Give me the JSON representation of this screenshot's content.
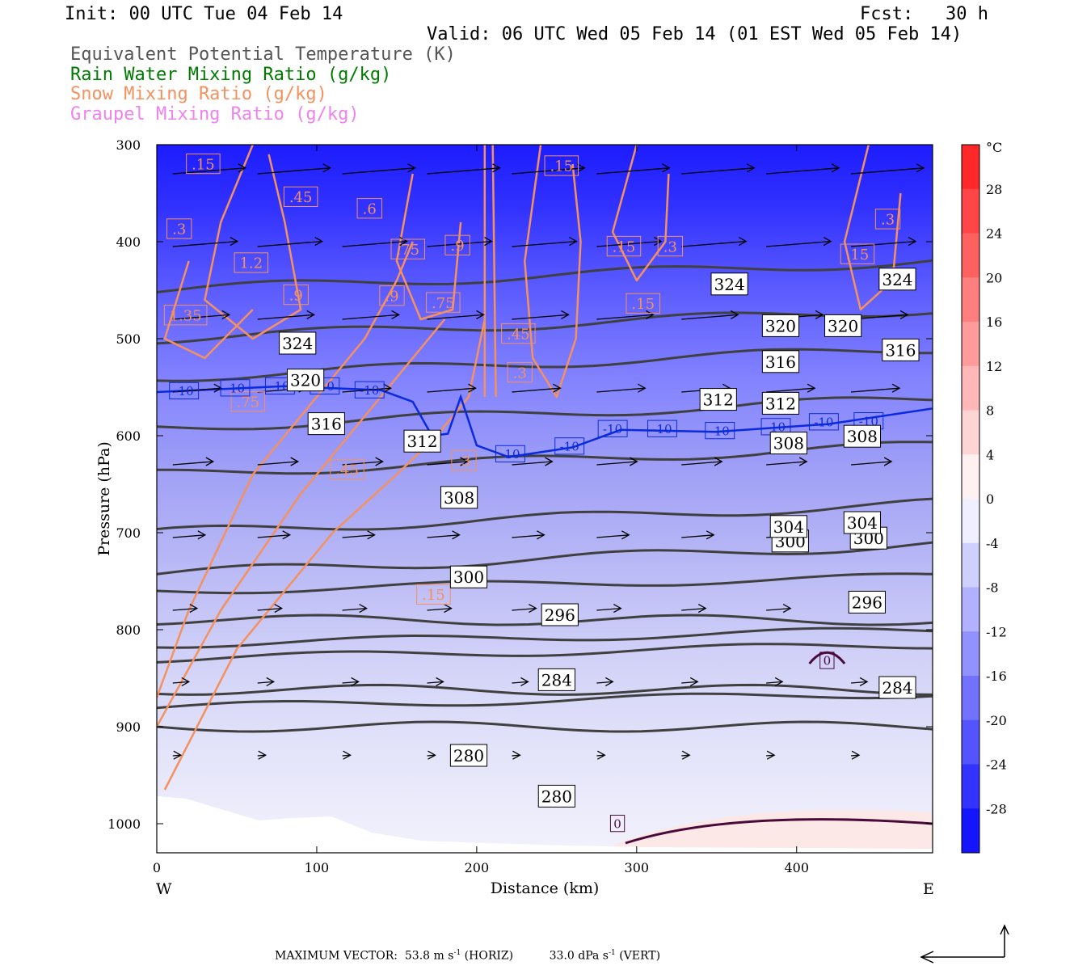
{
  "header": {
    "init": "Init: 00 UTC Tue 04 Feb 14",
    "fcst": "Fcst:   30 h",
    "valid": "Valid: 06 UTC Wed 05 Feb 14 (01 EST Wed 05 Feb 14)"
  },
  "legend": [
    {
      "label": "Equivalent Potential Temperature (K)",
      "color": "#555555"
    },
    {
      "label": "Rain Water Mixing Ratio (g/kg)",
      "color": "#007a00"
    },
    {
      "label": "Snow Mixing Ratio (g/kg)",
      "color": "#f4915e"
    },
    {
      "label": "Graupel Mixing Ratio (g/kg)",
      "color": "#ee82ee"
    }
  ],
  "chart_data": {
    "type": "heatmap",
    "xlabel": "Distance (km)",
    "ylabel": "Pressure (hPa)",
    "xlim": [
      0,
      485
    ],
    "ylim": [
      1030,
      300
    ],
    "x_ticks": [
      0,
      100,
      200,
      300,
      400
    ],
    "y_ticks": [
      300,
      400,
      500,
      600,
      700,
      800,
      900,
      1000
    ],
    "x_end_labels": {
      "left": "W",
      "right": "E"
    },
    "colorbar": {
      "unit": "°C",
      "tick_labels": [
        "28",
        "24",
        "20",
        "16",
        "12",
        "8",
        "4",
        "0",
        "-4",
        "-8",
        "-12",
        "-16",
        "-20",
        "-24",
        "-28"
      ],
      "range": [
        -32,
        32
      ],
      "placement": "right"
    },
    "theta_e_contours": [
      {
        "value": 280,
        "label": "280"
      },
      {
        "value": 284,
        "label": "284"
      },
      {
        "value": 296,
        "label": "296"
      },
      {
        "value": 300,
        "label": "300"
      },
      {
        "value": 304,
        "label": "304"
      },
      {
        "value": 308,
        "label": "308"
      },
      {
        "value": 312,
        "label": "312"
      },
      {
        "value": 316,
        "label": "316"
      },
      {
        "value": 320,
        "label": "320"
      },
      {
        "value": 324,
        "label": "324"
      }
    ],
    "theta_e_label_points": [
      {
        "x": 250,
        "p": 852,
        "text": "284"
      },
      {
        "x": 463,
        "p": 860,
        "text": "284"
      },
      {
        "x": 195,
        "p": 930,
        "text": "280"
      },
      {
        "x": 250,
        "p": 972,
        "text": "280"
      },
      {
        "x": 252,
        "p": 785,
        "text": "296"
      },
      {
        "x": 444,
        "p": 772,
        "text": "296"
      },
      {
        "x": 195,
        "p": 746,
        "text": "300"
      },
      {
        "x": 396,
        "p": 709,
        "text": "300"
      },
      {
        "x": 445,
        "p": 706,
        "text": "300"
      },
      {
        "x": 189,
        "p": 664,
        "text": "308"
      },
      {
        "x": 395,
        "p": 694,
        "text": "304"
      },
      {
        "x": 441,
        "p": 690,
        "text": "304"
      },
      {
        "x": 395,
        "p": 608,
        "text": "308"
      },
      {
        "x": 441,
        "p": 601,
        "text": "308"
      },
      {
        "x": 166,
        "p": 606,
        "text": "312"
      },
      {
        "x": 351,
        "p": 563,
        "text": "312"
      },
      {
        "x": 390,
        "p": 567,
        "text": "312"
      },
      {
        "x": 106,
        "p": 588,
        "text": "316"
      },
      {
        "x": 93,
        "p": 543,
        "text": "320"
      },
      {
        "x": 390,
        "p": 524,
        "text": "316"
      },
      {
        "x": 465,
        "p": 512,
        "text": "316"
      },
      {
        "x": 88,
        "p": 505,
        "text": "324"
      },
      {
        "x": 390,
        "p": 487,
        "text": "320"
      },
      {
        "x": 429,
        "p": 487,
        "text": "320"
      },
      {
        "x": 358,
        "p": 444,
        "text": "324"
      },
      {
        "x": 463,
        "p": 439,
        "text": "324"
      }
    ],
    "temperature_contour_labels": [
      {
        "x": 17,
        "p": 554,
        "text": "-10"
      },
      {
        "x": 49,
        "p": 551,
        "text": "-10"
      },
      {
        "x": 77,
        "p": 549,
        "text": "-10"
      },
      {
        "x": 105,
        "p": 549,
        "text": "-10"
      },
      {
        "x": 133,
        "p": 553,
        "text": "-10"
      },
      {
        "x": 221,
        "p": 619,
        "text": "-10"
      },
      {
        "x": 258,
        "p": 611,
        "text": "-10"
      },
      {
        "x": 285,
        "p": 593,
        "text": "-10"
      },
      {
        "x": 316,
        "p": 593,
        "text": "-10"
      },
      {
        "x": 352,
        "p": 595,
        "text": "-10"
      },
      {
        "x": 387,
        "p": 591,
        "text": "-10"
      },
      {
        "x": 417,
        "p": 586,
        "text": "-10"
      },
      {
        "x": 445,
        "p": 585,
        "text": "-10"
      },
      {
        "x": 419,
        "p": 832,
        "text": "0"
      },
      {
        "x": 288,
        "p": 1000,
        "text": "0"
      }
    ],
    "snow_contour_labels": [
      {
        "x": 29,
        "p": 320,
        "text": ".15"
      },
      {
        "x": 90,
        "p": 354,
        "text": ".45"
      },
      {
        "x": 133,
        "p": 366,
        "text": ".6"
      },
      {
        "x": 14,
        "p": 387,
        "text": ".3"
      },
      {
        "x": 157,
        "p": 408,
        "text": ".75"
      },
      {
        "x": 188,
        "p": 404,
        "text": ".9"
      },
      {
        "x": 59,
        "p": 422,
        "text": "1.2"
      },
      {
        "x": 87,
        "p": 455,
        "text": ".9"
      },
      {
        "x": 147,
        "p": 456,
        "text": ".9"
      },
      {
        "x": 18,
        "p": 476,
        "text": "1.35"
      },
      {
        "x": 179,
        "p": 463,
        "text": ".75"
      },
      {
        "x": 253,
        "p": 322,
        "text": ".15"
      },
      {
        "x": 292,
        "p": 405,
        "text": ".15"
      },
      {
        "x": 321,
        "p": 405,
        "text": ".3"
      },
      {
        "x": 304,
        "p": 464,
        "text": ".15"
      },
      {
        "x": 457,
        "p": 377,
        "text": ".3"
      },
      {
        "x": 438,
        "p": 413,
        "text": ".15"
      },
      {
        "x": 119,
        "p": 635,
        "text": ".45"
      },
      {
        "x": 173,
        "p": 764,
        "text": ".15"
      },
      {
        "x": 192,
        "p": 626,
        "text": ".3"
      },
      {
        "x": 57,
        "p": 565,
        "text": ".75"
      },
      {
        "x": 226,
        "p": 495,
        "text": ".45"
      },
      {
        "x": 227,
        "p": 535,
        "text": ".3"
      }
    ],
    "wind_vectors": {
      "max_horiz": "53.8 m s⁻¹ (HORIZ)",
      "max_vert": "33.0 dPa s⁻¹ (VERT)"
    }
  },
  "footer": {
    "label": "MAXIMUM VECTOR:",
    "horiz_value": "53.8 m s",
    "horiz_unit": "(HORIZ)",
    "vert_value": "33.0 dPa s",
    "vert_unit": "(VERT)",
    "sup": "-1"
  }
}
